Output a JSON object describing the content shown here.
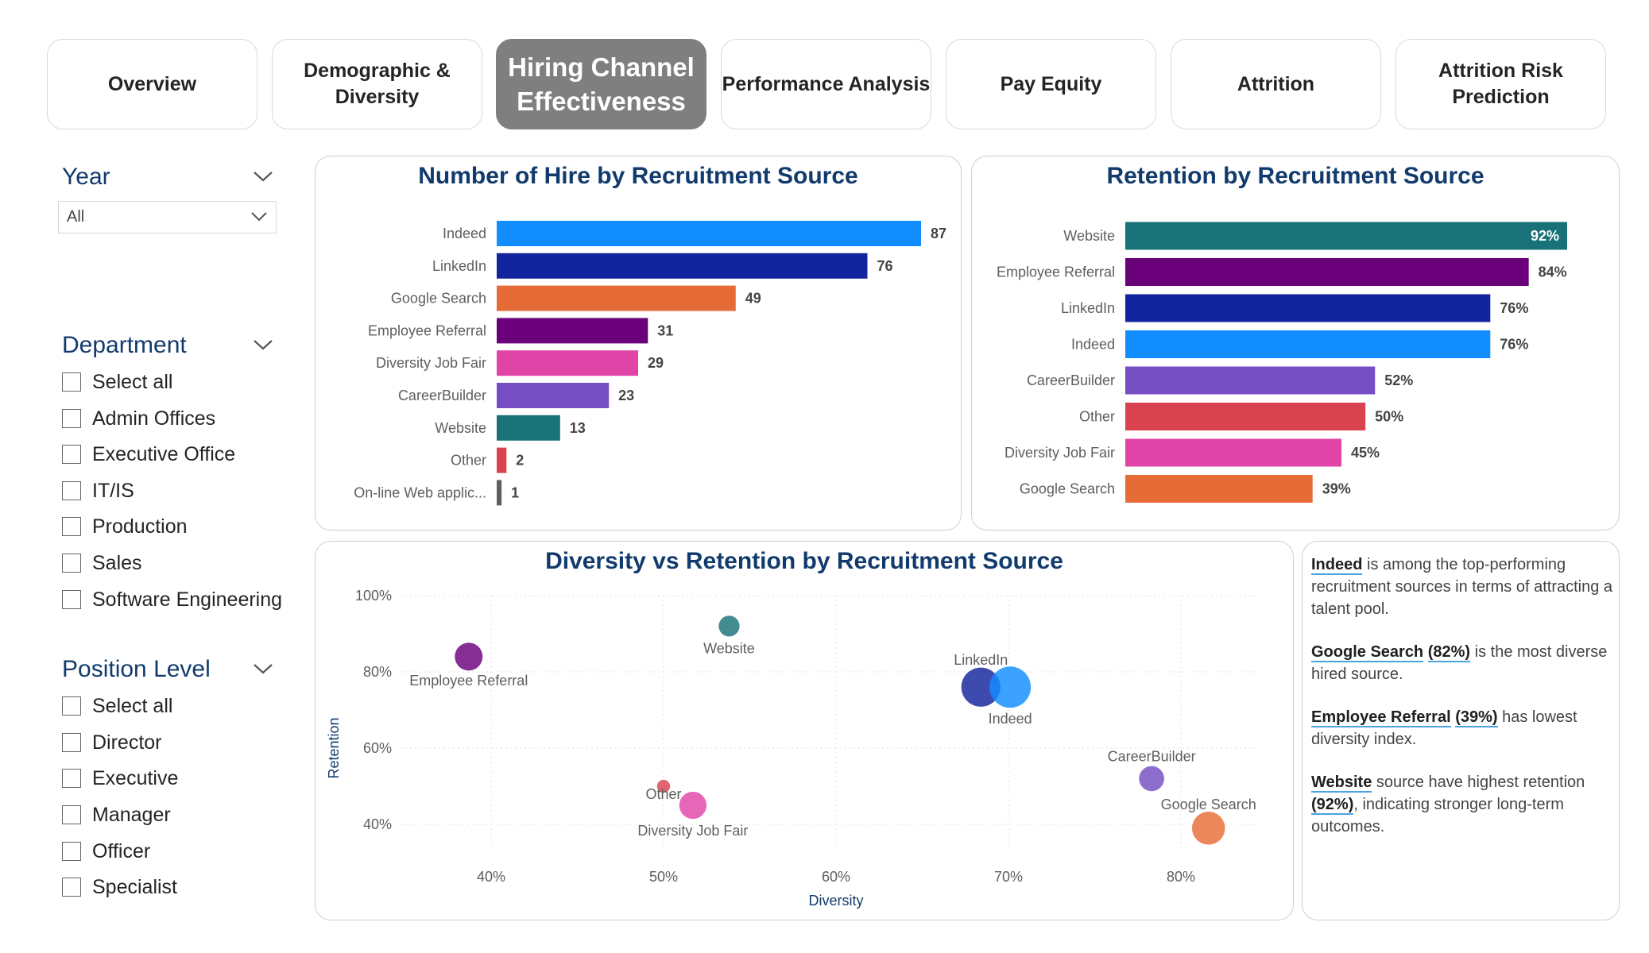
{
  "tabs": [
    {
      "label": "Overview",
      "active": false
    },
    {
      "label": "Demographic & Diversity",
      "active": false
    },
    {
      "label": "Hiring Channel Effectiveness",
      "active": true
    },
    {
      "label": "Performance Analysis",
      "active": false
    },
    {
      "label": "Pay Equity",
      "active": false
    },
    {
      "label": "Attrition",
      "active": false
    },
    {
      "label": "Attrition Risk Prediction",
      "active": false
    }
  ],
  "filters": {
    "year": {
      "title": "Year",
      "selected": "All"
    },
    "department": {
      "title": "Department",
      "options": [
        "Select all",
        "Admin Offices",
        "Executive Office",
        "IT/IS",
        "Production",
        "Sales",
        "Software Engineering"
      ]
    },
    "position_level": {
      "title": "Position Level",
      "options": [
        "Select all",
        "Director",
        "Executive",
        "Manager",
        "Officer",
        "Specialist"
      ]
    }
  },
  "charts": {
    "hires": {
      "title": "Number of Hire by Recruitment Source"
    },
    "retention": {
      "title": "Retention by Recruitment Source"
    },
    "scatter": {
      "title": "Diversity vs Retention by Recruitment Source"
    }
  },
  "chart_data": [
    {
      "type": "bar",
      "orientation": "horizontal",
      "title": "Number of Hire by Recruitment Source",
      "categories": [
        "Indeed",
        "LinkedIn",
        "Google Search",
        "Employee Referral",
        "Diversity Job Fair",
        "CareerBuilder",
        "Website",
        "Other",
        "On-line Web applic..."
      ],
      "values": [
        87,
        76,
        49,
        31,
        29,
        23,
        13,
        2,
        1
      ],
      "data_labels": [
        "87",
        "76",
        "49",
        "31",
        "29",
        "23",
        "13",
        "2",
        "1"
      ],
      "colors": [
        "#118dff",
        "#12239e",
        "#e66c37",
        "#6b007b",
        "#e044a7",
        "#744ec2",
        "#197278",
        "#d9434f",
        "#5f5f5f"
      ],
      "xlim": [
        0,
        87
      ]
    },
    {
      "type": "bar",
      "orientation": "horizontal",
      "title": "Retention by Recruitment Source",
      "categories": [
        "Website",
        "Employee Referral",
        "LinkedIn",
        "Indeed",
        "CareerBuilder",
        "Other",
        "Diversity Job Fair",
        "Google Search"
      ],
      "values": [
        92,
        84,
        76,
        76,
        52,
        50,
        45,
        39
      ],
      "data_labels": [
        "92%",
        "84%",
        "76%",
        "76%",
        "52%",
        "50%",
        "45%",
        "39%"
      ],
      "colors": [
        "#197278",
        "#6b007b",
        "#12239e",
        "#118dff",
        "#744ec2",
        "#d9434f",
        "#e044a7",
        "#e66c37"
      ],
      "xlim": [
        0,
        92
      ]
    },
    {
      "type": "scatter",
      "title": "Diversity vs Retention by Recruitment Source",
      "xlabel": "Diversity",
      "ylabel": "Retention",
      "xlim": [
        33,
        85
      ],
      "ylim": [
        33,
        100
      ],
      "x_ticks": [
        "40%",
        "50%",
        "60%",
        "70%",
        "80%"
      ],
      "y_ticks": [
        "40%",
        "60%",
        "80%",
        "100%"
      ],
      "points": [
        {
          "label": "Employee Referral",
          "x": 38.7,
          "y": 84,
          "size": 31,
          "color": "#6b007b"
        },
        {
          "label": "Website",
          "x": 53.8,
          "y": 92,
          "size": 13,
          "color": "#197278"
        },
        {
          "label": "LinkedIn",
          "x": 68.4,
          "y": 76,
          "size": 76,
          "color": "#12239e"
        },
        {
          "label": "Indeed",
          "x": 70.1,
          "y": 76,
          "size": 87,
          "color": "#118dff"
        },
        {
          "label": "CareerBuilder",
          "x": 78.3,
          "y": 52,
          "size": 23,
          "color": "#744ec2"
        },
        {
          "label": "Google Search",
          "x": 81.6,
          "y": 39,
          "size": 49,
          "color": "#e66c37"
        },
        {
          "label": "Other",
          "x": 50.0,
          "y": 50,
          "size": 2,
          "color": "#d9434f"
        },
        {
          "label": "Diversity Job Fair",
          "x": 51.7,
          "y": 45,
          "size": 29,
          "color": "#e044a7"
        }
      ]
    }
  ],
  "insights": [
    {
      "parts": [
        {
          "t": "Indeed",
          "hl": true
        },
        {
          "t": " is among the top-performing recruitment sources in terms of attracting a talent pool.",
          "hl": false
        }
      ]
    },
    {
      "parts": [
        {
          "t": "Google Search",
          "hl": true
        },
        {
          "t": " ",
          "hl": false
        },
        {
          "t": "(82%)",
          "hl": true
        },
        {
          "t": " is the most diverse hired source.",
          "hl": false
        }
      ]
    },
    {
      "parts": [
        {
          "t": "Employee Referral",
          "hl": true
        },
        {
          "t": " ",
          "hl": false
        },
        {
          "t": "(39%)",
          "hl": true
        },
        {
          "t": " has lowest diversity index.",
          "hl": false
        }
      ]
    },
    {
      "parts": [
        {
          "t": "Website",
          "hl": true
        },
        {
          "t": " source have highest retention ",
          "hl": false
        },
        {
          "t": "(92%)",
          "hl": true
        },
        {
          "t": ", indicating stronger long-term outcomes.",
          "hl": false
        }
      ]
    }
  ],
  "colors": {
    "title_blue": "#123b6d",
    "active_tab": "#7f7f7f",
    "link_underline": "#4aa3df"
  }
}
